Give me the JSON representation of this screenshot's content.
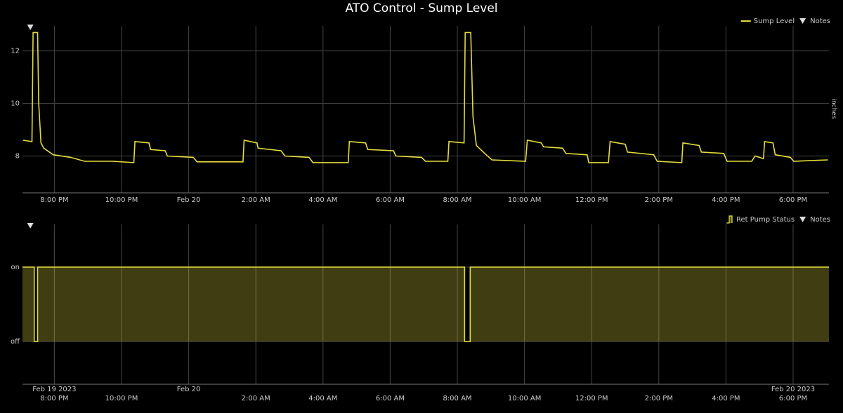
{
  "chart_data": [
    {
      "type": "line",
      "title": "ATO Control - Sump Level",
      "y_label": "inches",
      "x": [
        "2023-02-19 19:04",
        "2023-02-19 19:20",
        "2023-02-19 19:22",
        "2023-02-19 19:30",
        "2023-02-19 19:32",
        "2023-02-19 19:36",
        "2023-02-19 19:41",
        "2023-02-19 19:58",
        "2023-02-19 20:29",
        "2023-02-19 20:54",
        "2023-02-19 21:44",
        "2023-02-19 22:22",
        "2023-02-19 22:24",
        "2023-02-19 22:49",
        "2023-02-19 22:52",
        "2023-02-19 23:18",
        "2023-02-19 23:22",
        "2023-02-20 00:08",
        "2023-02-20 00:15",
        "2023-02-20 01:37",
        "2023-02-20 01:39",
        "2023-02-20 02:02",
        "2023-02-20 02:04",
        "2023-02-20 02:45",
        "2023-02-20 02:52",
        "2023-02-20 03:35",
        "2023-02-20 03:42",
        "2023-02-20 04:45",
        "2023-02-20 04:47",
        "2023-02-20 05:16",
        "2023-02-20 05:20",
        "2023-02-20 06:06",
        "2023-02-20 06:10",
        "2023-02-20 06:56",
        "2023-02-20 07:03",
        "2023-02-20 07:43",
        "2023-02-20 07:45",
        "2023-02-20 08:12",
        "2023-02-20 08:14",
        "2023-02-20 08:24",
        "2023-02-20 08:28",
        "2023-02-20 08:34",
        "2023-02-20 08:49",
        "2023-02-20 09:02",
        "2023-02-20 10:02",
        "2023-02-20 10:05",
        "2023-02-20 10:30",
        "2023-02-20 10:34",
        "2023-02-20 11:08",
        "2023-02-20 11:14",
        "2023-02-20 11:52",
        "2023-02-20 11:55",
        "2023-02-20 12:30",
        "2023-02-20 12:33",
        "2023-02-20 13:00",
        "2023-02-20 13:04",
        "2023-02-20 13:51",
        "2023-02-20 13:57",
        "2023-02-20 14:41",
        "2023-02-20 14:43",
        "2023-02-20 15:12",
        "2023-02-20 15:16",
        "2023-02-20 15:56",
        "2023-02-20 16:02",
        "2023-02-20 16:46",
        "2023-02-20 16:52",
        "2023-02-20 17:07",
        "2023-02-20 17:09",
        "2023-02-20 17:24",
        "2023-02-20 17:28",
        "2023-02-20 17:55",
        "2023-02-20 18:01",
        "2023-02-20 19:02"
      ],
      "series": [
        {
          "name": "Sump Level",
          "color": "#e3dc3c",
          "values": [
            8.6,
            8.55,
            12.7,
            12.7,
            10.0,
            8.5,
            8.3,
            8.05,
            7.95,
            7.8,
            7.8,
            7.75,
            8.55,
            8.5,
            8.25,
            8.2,
            8.0,
            7.95,
            7.78,
            7.78,
            8.6,
            8.5,
            8.3,
            8.2,
            8.0,
            7.95,
            7.75,
            7.75,
            8.55,
            8.5,
            8.25,
            8.2,
            8.0,
            7.95,
            7.8,
            7.8,
            8.55,
            8.5,
            12.7,
            12.7,
            9.5,
            8.4,
            8.1,
            7.85,
            7.8,
            8.6,
            8.5,
            8.35,
            8.3,
            8.1,
            8.05,
            7.75,
            7.75,
            8.55,
            8.45,
            8.15,
            8.05,
            7.8,
            7.75,
            8.5,
            8.4,
            8.15,
            8.1,
            7.8,
            7.8,
            8.0,
            7.9,
            8.55,
            8.5,
            8.05,
            7.95,
            7.8,
            7.85
          ]
        }
      ],
      "xlim": [
        "2023-02-19 19:03",
        "2023-02-20 19:04"
      ],
      "xticks": [
        {
          "value": "2023-02-19 20:00",
          "label": "8:00 PM"
        },
        {
          "value": "2023-02-19 22:00",
          "label": "10:00 PM"
        },
        {
          "value": "2023-02-20 00:00",
          "label": "Feb 20"
        },
        {
          "value": "2023-02-20 02:00",
          "label": "2:00 AM"
        },
        {
          "value": "2023-02-20 04:00",
          "label": "4:00 AM"
        },
        {
          "value": "2023-02-20 06:00",
          "label": "6:00 AM"
        },
        {
          "value": "2023-02-20 08:00",
          "label": "8:00 AM"
        },
        {
          "value": "2023-02-20 10:00",
          "label": "10:00 AM"
        },
        {
          "value": "2023-02-20 12:00",
          "label": "12:00 PM"
        },
        {
          "value": "2023-02-20 14:00",
          "label": "2:00 PM"
        },
        {
          "value": "2023-02-20 16:00",
          "label": "4:00 PM"
        },
        {
          "value": "2023-02-20 18:00",
          "label": "6:00 PM"
        }
      ],
      "ylim": [
        6.6,
        12.95
      ],
      "yticks": [
        8,
        10,
        12
      ],
      "grid": true,
      "legend": "top-right",
      "notes_label": "Notes",
      "notes_x": [
        "2023-02-19 19:17"
      ]
    },
    {
      "type": "step-area",
      "x": [
        "2023-02-19 19:03",
        "2023-02-19 19:24",
        "2023-02-19 19:30",
        "2023-02-20 08:13",
        "2023-02-20 08:23",
        "2023-02-20 19:04"
      ],
      "series": [
        {
          "name": "Ret Pump Status",
          "color": "#e3dc3c",
          "values": [
            1,
            0,
            1,
            0,
            1,
            1
          ]
        }
      ],
      "xlim": [
        "2023-02-19 19:03",
        "2023-02-20 19:04"
      ],
      "xticks": [
        {
          "value": "2023-02-19 20:00",
          "label": "8:00 PM"
        },
        {
          "value": "2023-02-19 22:00",
          "label": "10:00 PM"
        },
        {
          "value": "2023-02-20 02:00",
          "label": "2:00 AM"
        },
        {
          "value": "2023-02-20 04:00",
          "label": "4:00 AM"
        },
        {
          "value": "2023-02-20 06:00",
          "label": "6:00 AM"
        },
        {
          "value": "2023-02-20 08:00",
          "label": "8:00 AM"
        },
        {
          "value": "2023-02-20 10:00",
          "label": "10:00 AM"
        },
        {
          "value": "2023-02-20 12:00",
          "label": "12:00 PM"
        },
        {
          "value": "2023-02-20 14:00",
          "label": "2:00 PM"
        },
        {
          "value": "2023-02-20 16:00",
          "label": "4:00 PM"
        },
        {
          "value": "2023-02-20 18:00",
          "label": "6:00 PM"
        }
      ],
      "date_ticks": [
        {
          "value": "2023-02-19 20:00",
          "label": "Feb 19 2023"
        },
        {
          "value": "2023-02-20 00:00",
          "label": "Feb 20"
        },
        {
          "value": "2023-02-20 18:00",
          "label": "Feb 20 2023"
        }
      ],
      "ylim": [
        -0.575,
        1.575
      ],
      "yticks": [
        {
          "value": 0,
          "label": "off"
        },
        {
          "value": 1,
          "label": "on"
        }
      ],
      "grid": true,
      "legend": "top-right",
      "notes_label": "Notes",
      "notes_x": [
        "2023-02-19 19:17"
      ]
    }
  ]
}
